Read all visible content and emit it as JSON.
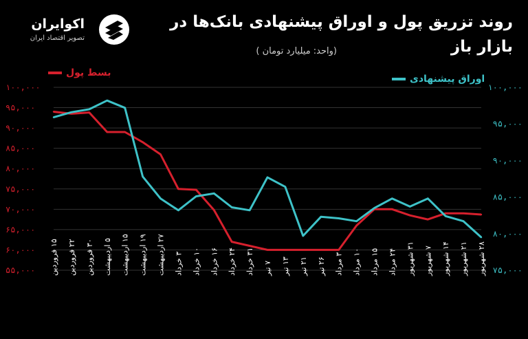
{
  "header": {
    "title": "روند تزریق پول و اوراق پیشنهادی بانک‌ها در بازار باز",
    "subtitle": "(واحد: میلیارد تومان )"
  },
  "brand": {
    "name": "اکوایران",
    "tagline": "تصویر اقتصاد ایران"
  },
  "colors": {
    "background": "#000000",
    "red_series": "#d6202d",
    "teal_series": "#3ec2c8",
    "left_axis_text": "#d6202d",
    "right_axis_text": "#3ec2c8",
    "grid": "#333333"
  },
  "chart_data": {
    "type": "line",
    "categories": [
      "۱۵ فروردین",
      "۲۲ فروردین",
      "۳۰ فروردین",
      "۵ اردیبهشت",
      "۱۵ اردیبهشت",
      "۱۹ اردیبهشت",
      "۲۷ اردیبهشت",
      "۳ خرداد",
      "۱۰ خرداد",
      "۱۶ خرداد",
      "۲۴ خرداد",
      "۳۱ خرداد",
      "۷ تیر",
      "۱۳ تیر",
      "۲۱ تیر",
      "۲۶ تیر",
      "۳ مرداد",
      "۱۰ مرداد",
      "۱۵ مرداد",
      "۲۴ مرداد",
      "۳۱ شهریور",
      "۷ شهریور",
      "۱۴ شهریور",
      "۲۱ شهریور",
      "۲۸ شهریور"
    ],
    "series": [
      {
        "name": "بسط پول",
        "axis": "left",
        "color": "#d6202d",
        "values": [
          94000,
          93500,
          93800,
          89000,
          89000,
          86500,
          83500,
          75000,
          74800,
          69800,
          62000,
          61000,
          60000,
          60000,
          60000,
          60000,
          60000,
          66000,
          70000,
          70000,
          68500,
          67500,
          69000,
          69000,
          68700
        ]
      },
      {
        "name": "اوراق پیشنهادی",
        "axis": "right",
        "color": "#3ec2c8",
        "values": [
          95900,
          96600,
          97000,
          98200,
          97200,
          87800,
          84800,
          83200,
          85100,
          85500,
          83600,
          83200,
          87700,
          86400,
          79700,
          82300,
          82100,
          81700,
          83500,
          84800,
          83700,
          84800,
          82400,
          81700,
          79500
        ]
      }
    ],
    "left_axis": {
      "ylim": [
        55000,
        100000
      ],
      "ticks": [
        "۵۵,۰۰۰",
        "۶۰,۰۰۰",
        "۶۵,۰۰۰",
        "۷۰,۰۰۰",
        "۷۵,۰۰۰",
        "۸۰,۰۰۰",
        "۸۵,۰۰۰",
        "۹۰,۰۰۰",
        "۹۵,۰۰۰",
        "۱۰۰,۰۰۰"
      ]
    },
    "right_axis": {
      "ylim": [
        75000,
        100000
      ],
      "ticks": [
        "۷۵,۰۰۰",
        "۸۰,۰۰۰",
        "۸۵,۰۰۰",
        "۹۰,۰۰۰",
        "۹۵,۰۰۰",
        "۱۰۰,۰۰۰"
      ]
    },
    "legend_placement": "top"
  }
}
